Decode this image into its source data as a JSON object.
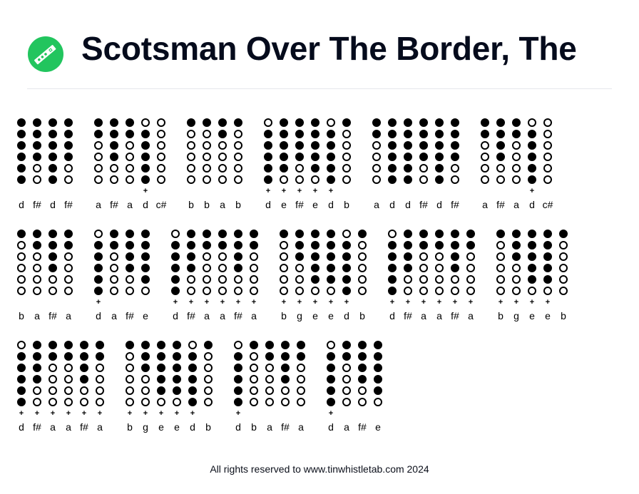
{
  "header": {
    "logo": {
      "icon": "tin-whistle-icon",
      "color": "#22c55e"
    },
    "title": "Scotsman Over The Border, The"
  },
  "legend": {
    "closed": "filled-circle",
    "open": "hollow-circle",
    "high_octave_marker": "+"
  },
  "tab_rows": [
    {
      "groups": [
        {
          "notes": [
            {
              "n": "d",
              "o": "",
              "h": [
                1,
                1,
                1,
                1,
                1,
                1
              ]
            },
            {
              "n": "f#",
              "o": "",
              "h": [
                1,
                1,
                1,
                1,
                0,
                0
              ]
            },
            {
              "n": "d",
              "o": "",
              "h": [
                1,
                1,
                1,
                1,
                1,
                1
              ]
            },
            {
              "n": "f#",
              "o": "",
              "h": [
                1,
                1,
                1,
                1,
                0,
                0
              ]
            }
          ]
        },
        {
          "notes": [
            {
              "n": "a",
              "o": "",
              "h": [
                1,
                1,
                0,
                0,
                0,
                0
              ]
            },
            {
              "n": "f#",
              "o": "",
              "h": [
                1,
                1,
                1,
                1,
                0,
                0
              ]
            },
            {
              "n": "a",
              "o": "",
              "h": [
                1,
                1,
                0,
                0,
                0,
                0
              ]
            },
            {
              "n": "d",
              "o": "+",
              "h": [
                0,
                1,
                1,
                1,
                1,
                1
              ]
            },
            {
              "n": "c#",
              "o": "",
              "h": [
                0,
                0,
                0,
                0,
                0,
                0
              ]
            }
          ]
        },
        {
          "notes": [
            {
              "n": "b",
              "o": "",
              "h": [
                1,
                0,
                0,
                0,
                0,
                0
              ]
            },
            {
              "n": "b",
              "o": "",
              "h": [
                1,
                0,
                0,
                0,
                0,
                0
              ]
            },
            {
              "n": "a",
              "o": "",
              "h": [
                1,
                1,
                0,
                0,
                0,
                0
              ]
            },
            {
              "n": "b",
              "o": "",
              "h": [
                1,
                0,
                0,
                0,
                0,
                0
              ]
            }
          ]
        },
        {
          "notes": [
            {
              "n": "d",
              "o": "+",
              "h": [
                0,
                1,
                1,
                1,
                1,
                1
              ]
            },
            {
              "n": "e",
              "o": "+",
              "h": [
                1,
                1,
                1,
                1,
                1,
                0
              ]
            },
            {
              "n": "f#",
              "o": "+",
              "h": [
                1,
                1,
                1,
                1,
                0,
                0
              ]
            },
            {
              "n": "e",
              "o": "+",
              "h": [
                1,
                1,
                1,
                1,
                1,
                0
              ]
            },
            {
              "n": "d",
              "o": "+",
              "h": [
                0,
                1,
                1,
                1,
                1,
                1
              ]
            },
            {
              "n": "b",
              "o": "",
              "h": [
                1,
                0,
                0,
                0,
                0,
                0
              ]
            }
          ]
        },
        {
          "notes": [
            {
              "n": "a",
              "o": "",
              "h": [
                1,
                1,
                0,
                0,
                0,
                0
              ]
            },
            {
              "n": "d",
              "o": "",
              "h": [
                1,
                1,
                1,
                1,
                1,
                1
              ]
            },
            {
              "n": "d",
              "o": "",
              "h": [
                1,
                1,
                1,
                1,
                1,
                1
              ]
            },
            {
              "n": "f#",
              "o": "",
              "h": [
                1,
                1,
                1,
                1,
                0,
                0
              ]
            },
            {
              "n": "d",
              "o": "",
              "h": [
                1,
                1,
                1,
                1,
                1,
                1
              ]
            },
            {
              "n": "f#",
              "o": "",
              "h": [
                1,
                1,
                1,
                1,
                0,
                0
              ]
            }
          ]
        },
        {
          "notes": [
            {
              "n": "a",
              "o": "",
              "h": [
                1,
                1,
                0,
                0,
                0,
                0
              ]
            },
            {
              "n": "f#",
              "o": "",
              "h": [
                1,
                1,
                1,
                1,
                0,
                0
              ]
            },
            {
              "n": "a",
              "o": "",
              "h": [
                1,
                1,
                0,
                0,
                0,
                0
              ]
            },
            {
              "n": "d",
              "o": "+",
              "h": [
                0,
                1,
                1,
                1,
                1,
                1
              ]
            },
            {
              "n": "c#",
              "o": "",
              "h": [
                0,
                0,
                0,
                0,
                0,
                0
              ]
            }
          ]
        }
      ]
    },
    {
      "groups": [
        {
          "notes": [
            {
              "n": "b",
              "o": "",
              "h": [
                1,
                0,
                0,
                0,
                0,
                0
              ]
            },
            {
              "n": "a",
              "o": "",
              "h": [
                1,
                1,
                0,
                0,
                0,
                0
              ]
            },
            {
              "n": "f#",
              "o": "",
              "h": [
                1,
                1,
                1,
                1,
                0,
                0
              ]
            },
            {
              "n": "a",
              "o": "",
              "h": [
                1,
                1,
                0,
                0,
                0,
                0
              ]
            }
          ]
        },
        {
          "notes": [
            {
              "n": "d",
              "o": "+",
              "h": [
                0,
                1,
                1,
                1,
                1,
                1
              ]
            },
            {
              "n": "a",
              "o": "",
              "h": [
                1,
                1,
                0,
                0,
                0,
                0
              ]
            },
            {
              "n": "f#",
              "o": "",
              "h": [
                1,
                1,
                1,
                1,
                0,
                0
              ]
            },
            {
              "n": "e",
              "o": "",
              "h": [
                1,
                1,
                1,
                1,
                1,
                0
              ]
            }
          ]
        },
        {
          "notes": [
            {
              "n": "d",
              "o": "+",
              "h": [
                0,
                1,
                1,
                1,
                1,
                1
              ]
            },
            {
              "n": "f#",
              "o": "+",
              "h": [
                1,
                1,
                1,
                1,
                0,
                0
              ]
            },
            {
              "n": "a",
              "o": "+",
              "h": [
                1,
                1,
                0,
                0,
                0,
                0
              ]
            },
            {
              "n": "a",
              "o": "+",
              "h": [
                1,
                1,
                0,
                0,
                0,
                0
              ]
            },
            {
              "n": "f#",
              "o": "+",
              "h": [
                1,
                1,
                1,
                1,
                0,
                0
              ]
            },
            {
              "n": "a",
              "o": "+",
              "h": [
                1,
                1,
                0,
                0,
                0,
                0
              ]
            }
          ]
        },
        {
          "notes": [
            {
              "n": "b",
              "o": "+",
              "h": [
                1,
                0,
                0,
                0,
                0,
                0
              ]
            },
            {
              "n": "g",
              "o": "+",
              "h": [
                1,
                1,
                1,
                0,
                0,
                0
              ]
            },
            {
              "n": "e",
              "o": "+",
              "h": [
                1,
                1,
                1,
                1,
                1,
                0
              ]
            },
            {
              "n": "e",
              "o": "+",
              "h": [
                1,
                1,
                1,
                1,
                1,
                0
              ]
            },
            {
              "n": "d",
              "o": "+",
              "h": [
                0,
                1,
                1,
                1,
                1,
                1
              ]
            },
            {
              "n": "b",
              "o": "",
              "h": [
                1,
                0,
                0,
                0,
                0,
                0
              ]
            }
          ]
        },
        {
          "notes": [
            {
              "n": "d",
              "o": "+",
              "h": [
                0,
                1,
                1,
                1,
                1,
                1
              ]
            },
            {
              "n": "f#",
              "o": "+",
              "h": [
                1,
                1,
                1,
                1,
                0,
                0
              ]
            },
            {
              "n": "a",
              "o": "+",
              "h": [
                1,
                1,
                0,
                0,
                0,
                0
              ]
            },
            {
              "n": "a",
              "o": "+",
              "h": [
                1,
                1,
                0,
                0,
                0,
                0
              ]
            },
            {
              "n": "f#",
              "o": "+",
              "h": [
                1,
                1,
                1,
                1,
                0,
                0
              ]
            },
            {
              "n": "a",
              "o": "+",
              "h": [
                1,
                1,
                0,
                0,
                0,
                0
              ]
            }
          ]
        },
        {
          "notes": [
            {
              "n": "b",
              "o": "+",
              "h": [
                1,
                0,
                0,
                0,
                0,
                0
              ]
            },
            {
              "n": "g",
              "o": "+",
              "h": [
                1,
                1,
                1,
                0,
                0,
                0
              ]
            },
            {
              "n": "e",
              "o": "+",
              "h": [
                1,
                1,
                1,
                1,
                1,
                0
              ]
            },
            {
              "n": "e",
              "o": "+",
              "h": [
                1,
                1,
                1,
                1,
                1,
                0
              ]
            },
            {
              "n": "b",
              "o": "",
              "h": [
                1,
                0,
                0,
                0,
                0,
                0
              ]
            }
          ]
        }
      ]
    },
    {
      "groups": [
        {
          "notes": [
            {
              "n": "d",
              "o": "+",
              "h": [
                0,
                1,
                1,
                1,
                1,
                1
              ]
            },
            {
              "n": "f#",
              "o": "+",
              "h": [
                1,
                1,
                1,
                1,
                0,
                0
              ]
            },
            {
              "n": "a",
              "o": "+",
              "h": [
                1,
                1,
                0,
                0,
                0,
                0
              ]
            },
            {
              "n": "a",
              "o": "+",
              "h": [
                1,
                1,
                0,
                0,
                0,
                0
              ]
            },
            {
              "n": "f#",
              "o": "+",
              "h": [
                1,
                1,
                1,
                1,
                0,
                0
              ]
            },
            {
              "n": "a",
              "o": "+",
              "h": [
                1,
                1,
                0,
                0,
                0,
                0
              ]
            }
          ]
        },
        {
          "notes": [
            {
              "n": "b",
              "o": "+",
              "h": [
                1,
                0,
                0,
                0,
                0,
                0
              ]
            },
            {
              "n": "g",
              "o": "+",
              "h": [
                1,
                1,
                1,
                0,
                0,
                0
              ]
            },
            {
              "n": "e",
              "o": "+",
              "h": [
                1,
                1,
                1,
                1,
                1,
                0
              ]
            },
            {
              "n": "e",
              "o": "+",
              "h": [
                1,
                1,
                1,
                1,
                1,
                0
              ]
            },
            {
              "n": "d",
              "o": "+",
              "h": [
                0,
                1,
                1,
                1,
                1,
                1
              ]
            },
            {
              "n": "b",
              "o": "",
              "h": [
                1,
                0,
                0,
                0,
                0,
                0
              ]
            }
          ]
        },
        {
          "notes": [
            {
              "n": "d",
              "o": "+",
              "h": [
                0,
                1,
                1,
                1,
                1,
                1
              ]
            },
            {
              "n": "b",
              "o": "",
              "h": [
                1,
                0,
                0,
                0,
                0,
                0
              ]
            },
            {
              "n": "a",
              "o": "",
              "h": [
                1,
                1,
                0,
                0,
                0,
                0
              ]
            },
            {
              "n": "f#",
              "o": "",
              "h": [
                1,
                1,
                1,
                1,
                0,
                0
              ]
            },
            {
              "n": "a",
              "o": "",
              "h": [
                1,
                1,
                0,
                0,
                0,
                0
              ]
            }
          ]
        },
        {
          "notes": [
            {
              "n": "d",
              "o": "+",
              "h": [
                0,
                1,
                1,
                1,
                1,
                1
              ]
            },
            {
              "n": "a",
              "o": "",
              "h": [
                1,
                1,
                0,
                0,
                0,
                0
              ]
            },
            {
              "n": "f#",
              "o": "",
              "h": [
                1,
                1,
                1,
                1,
                0,
                0
              ]
            },
            {
              "n": "e",
              "o": "",
              "h": [
                1,
                1,
                1,
                1,
                1,
                0
              ]
            }
          ]
        }
      ]
    }
  ],
  "footer": {
    "text": "All rights reserved to www.tinwhistletab.com 2024"
  }
}
